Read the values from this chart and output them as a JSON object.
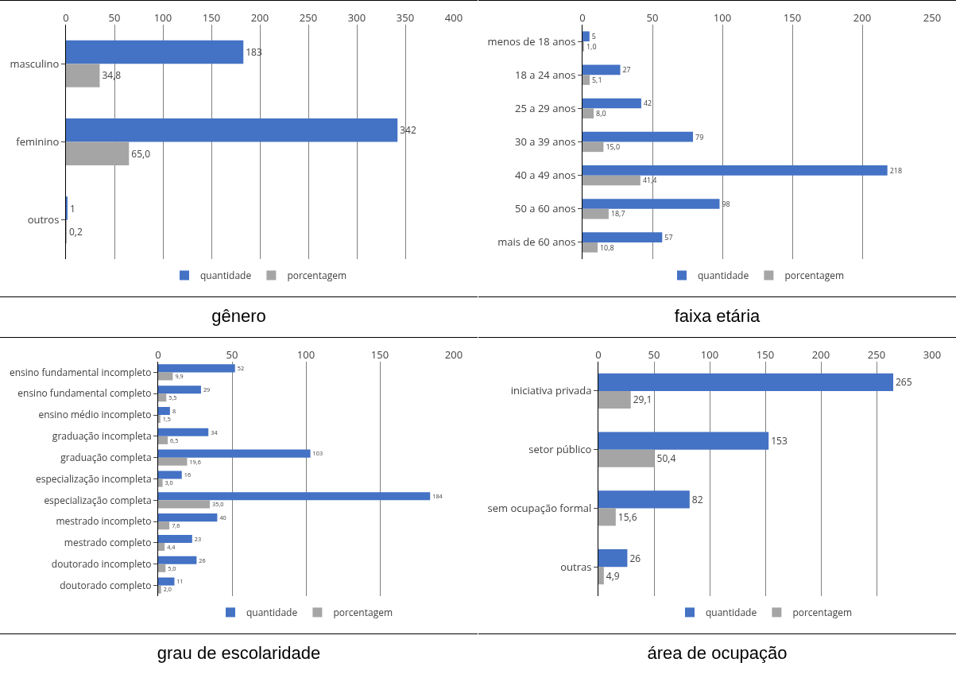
{
  "chart_data": [
    {
      "type": "bar",
      "orientation": "horizontal",
      "title": "gênero",
      "categories": [
        "masculino",
        "feminino",
        "outros"
      ],
      "series": [
        {
          "name": "quantidade",
          "color": "#4472c4",
          "values": [
            183,
            342,
            1
          ],
          "value_labels": [
            "183",
            "342",
            "1"
          ]
        },
        {
          "name": "porcentagem",
          "color": "#a5a5a5",
          "values": [
            34.8,
            65.0,
            0.2
          ],
          "value_labels": [
            "34,8",
            "65,0",
            "0,2"
          ]
        }
      ],
      "xlim": [
        0,
        400
      ],
      "xticks": [
        0,
        50,
        100,
        150,
        200,
        250,
        300,
        350,
        400
      ],
      "grid": "x",
      "legend": "bottom"
    },
    {
      "type": "bar",
      "orientation": "horizontal",
      "title": "faixa etária",
      "categories": [
        "menos de 18 anos",
        "18 a 24 anos",
        "25 a 29 anos",
        "30 a 39 anos",
        "40 a 49 anos",
        "50 a 60 anos",
        "mais de 60 anos"
      ],
      "series": [
        {
          "name": "quantidade",
          "color": "#4472c4",
          "values": [
            5,
            27,
            42,
            79,
            218,
            98,
            57
          ],
          "value_labels": [
            "5",
            "27",
            "42",
            "79",
            "218",
            "98",
            "57"
          ]
        },
        {
          "name": "porcentagem",
          "color": "#a5a5a5",
          "values": [
            1.0,
            5.1,
            8.0,
            15.0,
            41.4,
            18.7,
            10.8
          ],
          "value_labels": [
            "1,0",
            "5,1",
            "8,0",
            "15,0",
            "41,4",
            "18,7",
            "10,8"
          ]
        }
      ],
      "xlim": [
        0,
        250
      ],
      "xticks": [
        0,
        50,
        100,
        150,
        200,
        250
      ],
      "grid": "x",
      "legend": "bottom"
    },
    {
      "type": "bar",
      "orientation": "horizontal",
      "title": "grau de escolaridade",
      "categories": [
        "ensino fundamental incompleto",
        "ensino fundamental completo",
        "ensino médio incompleto",
        "graduação incompleta",
        "graduação completa",
        "especialização incompleta",
        "especialização completa",
        "mestrado incompleto",
        "mestrado completo",
        "doutorado incompleto",
        "doutorado completo"
      ],
      "series": [
        {
          "name": "quantidade",
          "color": "#4472c4",
          "values": [
            52,
            29,
            8,
            34,
            103,
            16,
            184,
            40,
            23,
            26,
            11
          ],
          "value_labels": [
            "52",
            "29",
            "8",
            "34",
            "103",
            "16",
            "184",
            "40",
            "23",
            "26",
            "11"
          ]
        },
        {
          "name": "porcentagem",
          "color": "#a5a5a5",
          "values": [
            9.9,
            5.5,
            1.5,
            6.5,
            19.6,
            3.0,
            35.0,
            7.6,
            4.4,
            5.0,
            2.0
          ],
          "value_labels": [
            "9,9",
            "5,5",
            "1,5",
            "6,5",
            "19,6",
            "3,0",
            "35,0",
            "7,6",
            "4,4",
            "5,0",
            "2,0"
          ]
        }
      ],
      "xlim": [
        0,
        200
      ],
      "xticks": [
        0,
        50,
        100,
        150,
        200
      ],
      "grid": "x",
      "legend": "bottom"
    },
    {
      "type": "bar",
      "orientation": "horizontal",
      "title": "área de ocupação",
      "categories": [
        "iniciativa privada",
        "setor público",
        "sem ocupação formal",
        "outras"
      ],
      "series": [
        {
          "name": "quantidade",
          "color": "#4472c4",
          "values": [
            265,
            153,
            82,
            26
          ],
          "value_labels": [
            "265",
            "153",
            "82",
            "26"
          ]
        },
        {
          "name": "porcentagem",
          "color": "#a5a5a5",
          "values": [
            29.1,
            50.4,
            15.6,
            4.9
          ],
          "value_labels": [
            "29,1",
            "50,4",
            "15,6",
            "4,9"
          ]
        }
      ],
      "xlim": [
        0,
        300
      ],
      "xticks": [
        0,
        50,
        100,
        150,
        200,
        250,
        300
      ],
      "grid": "x",
      "legend": "bottom"
    }
  ]
}
